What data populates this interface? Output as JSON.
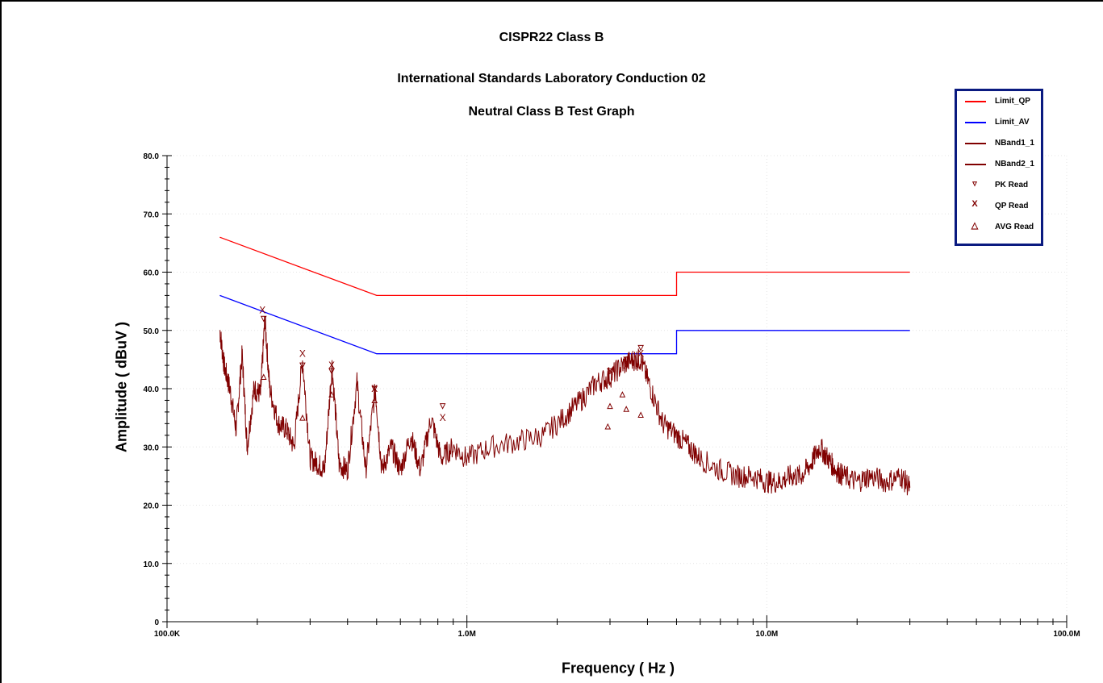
{
  "titles": {
    "line1": "CISPR22 Class B",
    "line2": "International Standards Laboratory Conduction 02",
    "line3": "Neutral Class B Test Graph"
  },
  "chart_data": {
    "type": "line",
    "title": "CISPR22 Class B",
    "xlabel": "Frequency ( Hz )",
    "ylabel": "Amplitude ( dBuV )",
    "xscale": "log",
    "xlim": [
      100000,
      100000000
    ],
    "ylim": [
      0,
      80
    ],
    "xticklabels": [
      "100.0K",
      "1.0M",
      "10.0M",
      "100.0M"
    ],
    "yticklabels": [
      "0",
      "10.0",
      "20.0",
      "30.0",
      "40.0",
      "50.0",
      "60.0",
      "70.0",
      "80.0"
    ],
    "grid": true,
    "legend_position": "top-right",
    "series": [
      {
        "name": "Limit_QP",
        "color": "#ff0000",
        "x": [
          150000,
          500000,
          500000,
          5000000,
          5000000,
          30000000
        ],
        "y": [
          66,
          56,
          56,
          56,
          60,
          60
        ]
      },
      {
        "name": "Limit_AV",
        "color": "#0000ff",
        "x": [
          150000,
          500000,
          500000,
          5000000,
          5000000,
          30000000
        ],
        "y": [
          56,
          46,
          46,
          46,
          50,
          50
        ]
      },
      {
        "name": "NBand1_1",
        "color": "#800000",
        "x": [
          150000,
          155000,
          162000,
          170000,
          178000,
          185000,
          195000,
          205000,
          212000,
          220000,
          235000,
          250000,
          265000,
          283000,
          300000,
          320000,
          335000,
          355000,
          375000,
          400000,
          430000,
          460000,
          495000,
          520000,
          560000,
          600000,
          650000,
          700000,
          760000,
          820000,
          900000,
          1000000,
          1200000,
          1500000,
          1800000,
          2100000,
          2400000,
          2700000,
          3000000,
          3300000,
          3600000,
          3800000,
          4100000,
          4500000,
          5000000,
          5500000,
          6000000,
          7000000,
          8000000,
          9000000,
          10000000,
          11000000,
          12000000,
          13000000,
          14000000,
          15000000,
          16000000,
          17000000,
          18000000,
          20000000,
          22000000,
          25000000,
          28000000,
          30000000
        ],
        "y": [
          50,
          44,
          40,
          33,
          46,
          30,
          40,
          39,
          52,
          40,
          34,
          33,
          30,
          45,
          28,
          27,
          26,
          44,
          27,
          26,
          41,
          26,
          40,
          26,
          30,
          26,
          32,
          26,
          35,
          28,
          30,
          28,
          30,
          31,
          32,
          35,
          38,
          41,
          42,
          44,
          45,
          45,
          40,
          34,
          32,
          30,
          28,
          26,
          25,
          25,
          24,
          24,
          25,
          25,
          27,
          30,
          28,
          26,
          25,
          24,
          25,
          24,
          25,
          23
        ]
      },
      {
        "name": "NBand2_1",
        "color": "#800000",
        "x": [],
        "y": []
      }
    ],
    "markers": [
      {
        "name": "PK Read",
        "symbol": "▿",
        "x": [
          210000,
          283000,
          354000,
          492000,
          830000,
          3000000,
          3400000,
          3800000
        ],
        "y": [
          52,
          44,
          43,
          40,
          37,
          43,
          45,
          47
        ]
      },
      {
        "name": "QP Read",
        "symbol": "X",
        "x": [
          208000,
          283000,
          354000,
          492000,
          830000,
          3000000,
          3400000,
          3800000
        ],
        "y": [
          53.5,
          46,
          44,
          40,
          35,
          43,
          44,
          46
        ]
      },
      {
        "name": "AVG Read",
        "symbol": "△",
        "x": [
          210000,
          283000,
          354000,
          492000,
          2950000,
          3000000,
          3300000,
          3400000,
          3800000
        ],
        "y": [
          42,
          35,
          39,
          38,
          33.5,
          37,
          39,
          36.5,
          35.5
        ]
      }
    ]
  },
  "legend": [
    {
      "label": "Limit_QP",
      "color": "#ff0000",
      "kind": "line"
    },
    {
      "label": "Limit_AV",
      "color": "#0000ff",
      "kind": "line"
    },
    {
      "label": "NBand1_1",
      "color": "#800000",
      "kind": "line"
    },
    {
      "label": "NBand2_1",
      "color": "#800000",
      "kind": "line"
    },
    {
      "label": "PK Read",
      "color": "#800000",
      "kind": "marker",
      "symbol": "▿"
    },
    {
      "label": "QP Read",
      "color": "#800000",
      "kind": "marker",
      "symbol": "X"
    },
    {
      "label": "AVG Read",
      "color": "#800000",
      "kind": "marker",
      "symbol": "△"
    }
  ]
}
